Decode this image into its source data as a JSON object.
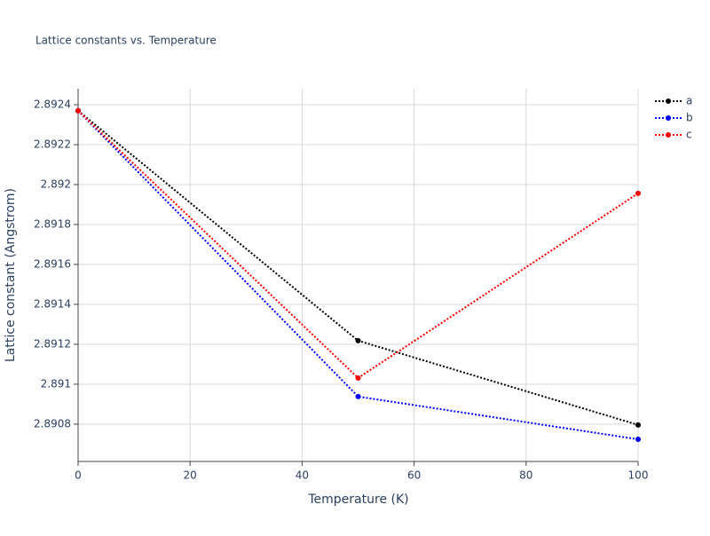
{
  "chart_data": {
    "type": "line",
    "title": "Lattice constants vs. Temperature",
    "x_label": "Temperature (K)",
    "y_label": "Lattice constant (Angstrom)",
    "x": [
      0,
      50,
      100
    ],
    "series": [
      {
        "name": "a",
        "color": "#000000",
        "values": [
          2.89237,
          2.891218,
          2.890796
        ]
      },
      {
        "name": "b",
        "color": "#0000ff",
        "values": [
          2.89237,
          2.890938,
          2.890724
        ]
      },
      {
        "name": "c",
        "color": "#ff0000",
        "values": [
          2.89237,
          2.891031,
          2.891956
        ]
      }
    ],
    "xlim": [
      0,
      100
    ],
    "xticks": [
      0,
      20,
      40,
      60,
      80,
      100
    ],
    "ylim": [
      2.890613,
      2.89248
    ],
    "yticks": [
      2.8908,
      2.891,
      2.8912,
      2.8914,
      2.8916,
      2.8918,
      2.892,
      2.8922,
      2.8924
    ],
    "grid": true,
    "legend": "top-right",
    "line_style": "dotted"
  }
}
